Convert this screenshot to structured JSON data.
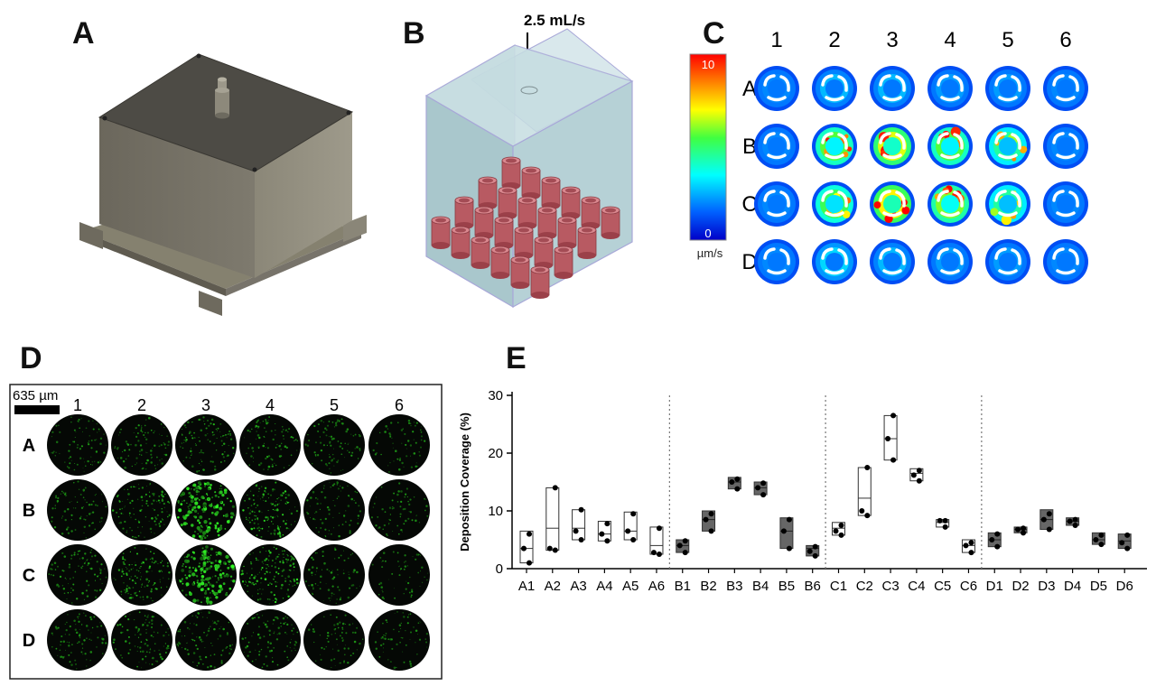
{
  "panels": {
    "a": {
      "letter": "A"
    },
    "b": {
      "letter": "B",
      "flow_rate": "2.5 mL/s"
    },
    "c": {
      "letter": "C",
      "colorbar": {
        "max": "10",
        "min": "0",
        "unit": "µm/s"
      },
      "columns": [
        "1",
        "2",
        "3",
        "4",
        "5",
        "6"
      ],
      "rows": [
        "A",
        "B",
        "C",
        "D"
      ],
      "intensity": [
        [
          0.15,
          0.35,
          0.35,
          0.3,
          0.3,
          0.1
        ],
        [
          0.15,
          0.75,
          0.9,
          0.75,
          0.6,
          0.15
        ],
        [
          0.2,
          0.7,
          0.95,
          0.8,
          0.6,
          0.15
        ],
        [
          0.15,
          0.4,
          0.35,
          0.3,
          0.3,
          0.1
        ]
      ]
    },
    "d": {
      "letter": "D",
      "scale_label": "635 µm",
      "columns": [
        "1",
        "2",
        "3",
        "4",
        "5",
        "6"
      ],
      "rows": [
        "A",
        "B",
        "C",
        "D"
      ],
      "density": [
        [
          0.35,
          0.45,
          0.55,
          0.45,
          0.4,
          0.25
        ],
        [
          0.35,
          0.6,
          0.95,
          0.8,
          0.35,
          0.25
        ],
        [
          0.45,
          0.7,
          1.0,
          0.85,
          0.35,
          0.2
        ],
        [
          0.4,
          0.5,
          0.45,
          0.45,
          0.3,
          0.25
        ]
      ]
    },
    "e": {
      "letter": "E"
    }
  },
  "chart_data": {
    "type": "box",
    "ylabel": "Deposition Coverage (%)",
    "ylim": [
      0,
      30
    ],
    "yticks": [
      0,
      10,
      20,
      30
    ],
    "categories": [
      "A1",
      "A2",
      "A3",
      "A4",
      "A5",
      "A6",
      "B1",
      "B2",
      "B3",
      "B4",
      "B5",
      "B6",
      "C1",
      "C2",
      "C3",
      "C4",
      "C5",
      "C6",
      "D1",
      "D2",
      "D3",
      "D4",
      "D5",
      "D6"
    ],
    "groups": [
      {
        "name": "A",
        "fill": "#ffffff",
        "boxes": [
          {
            "min": 1.0,
            "median": 3.5,
            "max": 6.5,
            "points": [
              1.0,
              3.5,
              6.0
            ]
          },
          {
            "min": 3.2,
            "median": 7.0,
            "max": 14.0,
            "points": [
              3.2,
              3.5,
              14.0
            ]
          },
          {
            "min": 5.0,
            "median": 7.0,
            "max": 10.2,
            "points": [
              5.0,
              6.5,
              10.2
            ]
          },
          {
            "min": 4.8,
            "median": 6.0,
            "max": 8.2,
            "points": [
              4.8,
              6.0,
              7.8
            ]
          },
          {
            "min": 5.0,
            "median": 6.5,
            "max": 9.8,
            "points": [
              5.0,
              6.5,
              9.5
            ]
          },
          {
            "min": 2.5,
            "median": 4.0,
            "max": 7.2,
            "points": [
              2.5,
              2.8,
              7.0
            ]
          }
        ]
      },
      {
        "name": "B",
        "fill": "#666666",
        "boxes": [
          {
            "min": 2.8,
            "median": 4.0,
            "max": 5.0,
            "points": [
              2.8,
              4.0,
              4.8
            ]
          },
          {
            "min": 6.5,
            "median": 8.5,
            "max": 10.0,
            "points": [
              6.5,
              8.5,
              9.5
            ]
          },
          {
            "min": 13.8,
            "median": 15.0,
            "max": 15.8,
            "points": [
              13.8,
              15.0,
              15.5
            ]
          },
          {
            "min": 12.8,
            "median": 14.0,
            "max": 15.0,
            "points": [
              12.8,
              14.0,
              14.8
            ]
          },
          {
            "min": 3.5,
            "median": 6.5,
            "max": 8.8,
            "points": [
              3.5,
              6.5,
              8.5
            ]
          },
          {
            "min": 2.2,
            "median": 3.5,
            "max": 4.0,
            "points": [
              2.2,
              3.0,
              3.8
            ]
          }
        ]
      },
      {
        "name": "C",
        "fill": "#ffffff",
        "boxes": [
          {
            "min": 5.8,
            "median": 7.0,
            "max": 8.0,
            "points": [
              5.8,
              6.5,
              7.5
            ]
          },
          {
            "min": 9.2,
            "median": 12.2,
            "max": 17.5,
            "points": [
              9.2,
              10.0,
              17.5
            ]
          },
          {
            "min": 18.8,
            "median": 22.5,
            "max": 26.5,
            "points": [
              18.8,
              22.5,
              26.5
            ]
          },
          {
            "min": 15.2,
            "median": 16.5,
            "max": 17.3,
            "points": [
              15.2,
              16.2,
              17.0
            ]
          },
          {
            "min": 7.2,
            "median": 8.0,
            "max": 8.5,
            "points": [
              7.2,
              8.3,
              8.3
            ]
          },
          {
            "min": 2.8,
            "median": 4.0,
            "max": 5.0,
            "points": [
              2.8,
              4.0,
              4.5
            ]
          }
        ]
      },
      {
        "name": "D",
        "fill": "#666666",
        "boxes": [
          {
            "min": 3.8,
            "median": 5.0,
            "max": 6.2,
            "points": [
              3.8,
              5.0,
              6.0
            ]
          },
          {
            "min": 6.2,
            "median": 6.8,
            "max": 7.2,
            "points": [
              6.2,
              6.8,
              7.0
            ]
          },
          {
            "min": 6.8,
            "median": 8.5,
            "max": 10.2,
            "points": [
              6.8,
              8.5,
              9.5
            ]
          },
          {
            "min": 7.5,
            "median": 8.2,
            "max": 8.8,
            "points": [
              7.5,
              8.2,
              8.5
            ]
          },
          {
            "min": 4.2,
            "median": 5.0,
            "max": 6.2,
            "points": [
              4.2,
              5.0,
              5.8
            ]
          },
          {
            "min": 3.5,
            "median": 4.8,
            "max": 6.0,
            "points": [
              3.5,
              4.5,
              5.8
            ]
          }
        ]
      }
    ]
  }
}
